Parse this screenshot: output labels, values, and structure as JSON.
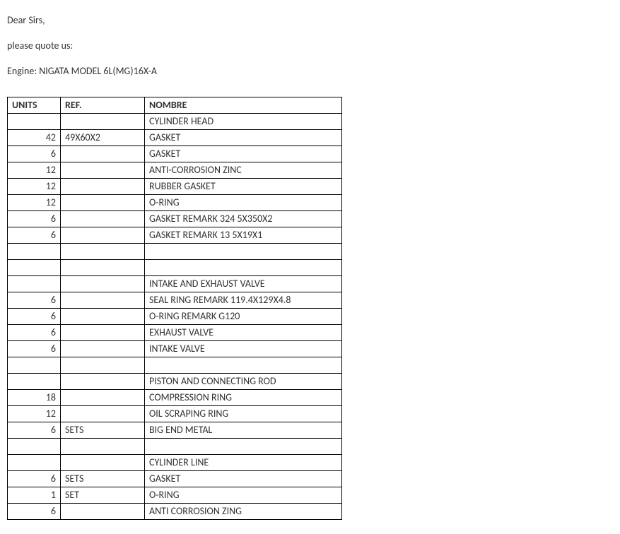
{
  "greeting": "Dear Sirs,",
  "request": "please quote us:",
  "engine_label": "Engine: NIGATA MODEL 6L(MG)16X-A",
  "headers": {
    "units": "UNITS",
    "ref": "REF.",
    "name": "NOMBRE"
  },
  "rows": [
    {
      "units": "",
      "ref": "",
      "name": "CYLINDER HEAD"
    },
    {
      "units": "42",
      "ref": "49X60X2",
      "name": "GASKET"
    },
    {
      "units": "6",
      "ref": "",
      "name": "GASKET"
    },
    {
      "units": "12",
      "ref": "",
      "name": "ANTI-CORROSION ZINC"
    },
    {
      "units": "12",
      "ref": "",
      "name": "RUBBER GASKET"
    },
    {
      "units": "12",
      "ref": "",
      "name": "O-RING"
    },
    {
      "units": "6",
      "ref": "",
      "name": "GASKET REMARK 324 5X350X2"
    },
    {
      "units": "6",
      "ref": "",
      "name": "GASKET REMARK 13 5X19X1"
    },
    {
      "units": "",
      "ref": "",
      "name": ""
    },
    {
      "units": "",
      "ref": "",
      "name": ""
    },
    {
      "units": "",
      "ref": "",
      "name": "INTAKE AND EXHAUST VALVE"
    },
    {
      "units": "6",
      "ref": "",
      "name": "SEAL RING REMARK 119.4X129X4.8"
    },
    {
      "units": "6",
      "ref": "",
      "name": "O-RING REMARK G120"
    },
    {
      "units": "6",
      "ref": "",
      "name": "EXHAUST VALVE"
    },
    {
      "units": "6",
      "ref": "",
      "name": "INTAKE VALVE"
    },
    {
      "units": "",
      "ref": "",
      "name": ""
    },
    {
      "units": "",
      "ref": "",
      "name": "PISTON AND CONNECTING ROD"
    },
    {
      "units": "18",
      "ref": "",
      "name": "COMPRESSION RING"
    },
    {
      "units": "12",
      "ref": "",
      "name": "OIL SCRAPING RING"
    },
    {
      "units": "6",
      "ref": "SETS",
      "name": "BIG END METAL"
    },
    {
      "units": "",
      "ref": "",
      "name": ""
    },
    {
      "units": "",
      "ref": "",
      "name": "CYLINDER LINE"
    },
    {
      "units": "6",
      "ref": "SETS",
      "name": "GASKET"
    },
    {
      "units": "1",
      "ref": "SET",
      "name": "O-RING"
    },
    {
      "units": "6",
      "ref": "",
      "name": "ANTI CORROSION ZING"
    }
  ]
}
